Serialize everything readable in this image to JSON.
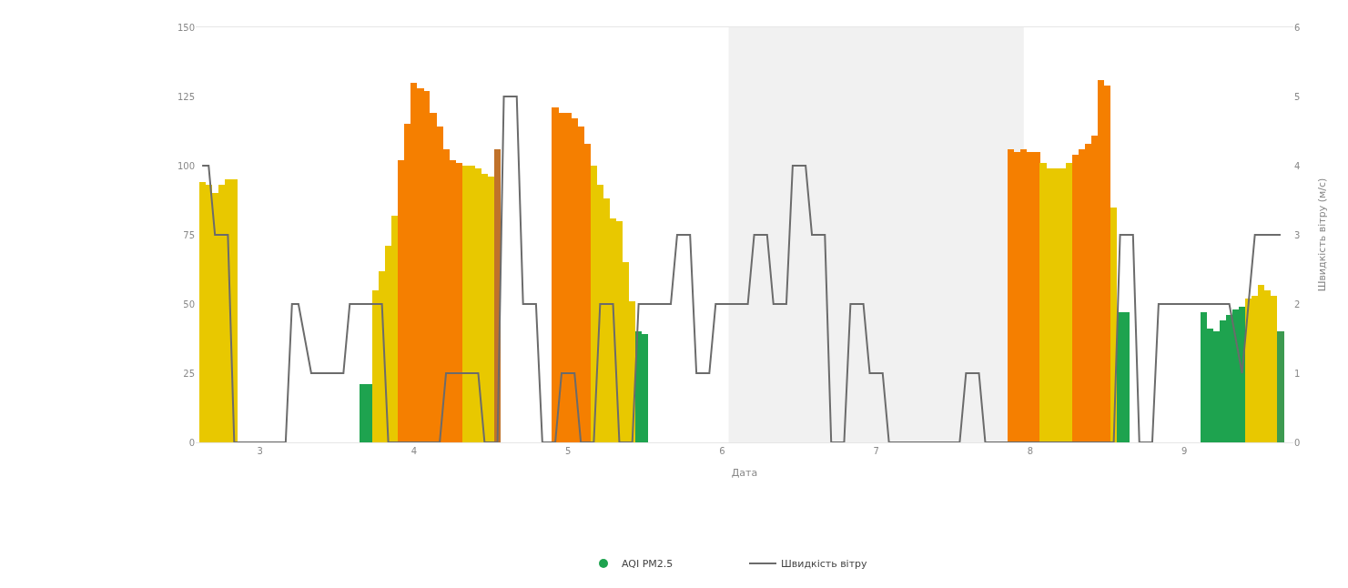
{
  "chart_data": {
    "type": "bar",
    "xlabel": "Дата",
    "y2label": "Швидкість вітру (м/с)",
    "xlim": [
      2.583,
      9.708
    ],
    "xticks": [
      3,
      4,
      5,
      6,
      7,
      8,
      9
    ],
    "ylim": [
      0,
      150
    ],
    "yticks": [
      0,
      25,
      50,
      75,
      100,
      125,
      150
    ],
    "y2lim": [
      0,
      6
    ],
    "y2ticks": [
      0,
      1,
      2,
      3,
      4,
      5,
      6
    ],
    "grid": false,
    "legend": "bottom",
    "marker": "none",
    "line_style": "solid",
    "bands": [
      {
        "axis": "x",
        "from": 6.042,
        "to": 7.958,
        "color": "#f1f1f1"
      }
    ],
    "series": [
      {
        "name": "AQI PM2.5",
        "color": "#1ea34f",
        "x": [
          2.625,
          2.667,
          2.708,
          2.75,
          2.792,
          2.833,
          3.667,
          3.708,
          3.75,
          3.792,
          3.833,
          3.875,
          3.917,
          3.958,
          4,
          4.042,
          4.083,
          4.125,
          4.167,
          4.208,
          4.25,
          4.292,
          4.333,
          4.375,
          4.417,
          4.458,
          4.5,
          4.542,
          4.917,
          4.958,
          5,
          5.042,
          5.083,
          5.125,
          5.167,
          5.208,
          5.25,
          5.292,
          5.333,
          5.375,
          5.417,
          5.458,
          5.5,
          7.875,
          7.917,
          7.958,
          8,
          8.042,
          8.083,
          8.125,
          8.167,
          8.208,
          8.25,
          8.292,
          8.333,
          8.375,
          8.417,
          8.458,
          8.5,
          8.542,
          8.583,
          8.625,
          9.125,
          9.167,
          9.208,
          9.25,
          9.292,
          9.333,
          9.375,
          9.417,
          9.458,
          9.5,
          9.542,
          9.583,
          9.625
        ],
        "values": [
          94,
          93,
          90,
          93,
          95,
          95,
          21,
          21,
          55,
          62,
          71,
          82,
          102,
          115,
          130,
          128,
          127,
          119,
          114,
          106,
          102,
          101,
          100,
          100,
          99,
          97,
          96,
          106,
          121,
          119,
          119,
          117,
          114,
          108,
          100,
          93,
          88,
          81,
          80,
          65,
          51,
          40,
          39,
          106,
          105,
          106,
          105,
          105,
          101,
          99,
          99,
          99,
          101,
          104,
          106,
          108,
          111,
          131,
          129,
          85,
          47,
          47,
          47,
          41,
          40,
          44,
          46,
          48,
          49,
          52,
          53,
          57,
          55,
          53,
          40
        ],
        "colors": [
          "#e8c800",
          "#e8c800",
          "#e8c800",
          "#e8c800",
          "#e8c800",
          "#e8c800",
          "#1ea34f",
          "#1ea34f",
          "#e8c800",
          "#e8c800",
          "#e8c800",
          "#e8c800",
          "#f57f00",
          "#f57f00",
          "#f57f00",
          "#f57f00",
          "#f57f00",
          "#f57f00",
          "#f57f00",
          "#f57f00",
          "#f57f00",
          "#f57f00",
          "#e8c800",
          "#e8c800",
          "#e8c800",
          "#e8c800",
          "#e8c800",
          "#c0722a",
          "#f57f00",
          "#f57f00",
          "#f57f00",
          "#f57f00",
          "#f57f00",
          "#f57f00",
          "#e8c800",
          "#e8c800",
          "#e8c800",
          "#e8c800",
          "#e8c800",
          "#e8c800",
          "#e8c800",
          "#1ea34f",
          "#1ea34f",
          "#f57f00",
          "#f57f00",
          "#f57f00",
          "#f57f00",
          "#f57f00",
          "#e8c800",
          "#e8c800",
          "#e8c800",
          "#e8c800",
          "#e8c800",
          "#f57f00",
          "#f57f00",
          "#f57f00",
          "#f57f00",
          "#f57f00",
          "#f57f00",
          "#e8c800",
          "#1ea34f",
          "#1ea34f",
          "#1ea34f",
          "#1ea34f",
          "#1ea34f",
          "#1ea34f",
          "#1ea34f",
          "#1ea34f",
          "#1ea34f",
          "#e8c800",
          "#e8c800",
          "#e8c800",
          "#e8c800",
          "#e8c800",
          "#3c9a50"
        ]
      },
      {
        "type": "line",
        "name": "Швидкість вітру",
        "color": "#6b6b6b",
        "axis": "y2",
        "x": [
          2.625,
          2.667,
          2.708,
          2.792,
          2.833,
          3.167,
          3.208,
          3.25,
          3.333,
          3.542,
          3.583,
          3.792,
          3.833,
          4.167,
          4.208,
          4.417,
          4.458,
          4.542,
          4.583,
          4.667,
          4.708,
          4.792,
          4.833,
          4.917,
          4.958,
          5.042,
          5.083,
          5.167,
          5.208,
          5.292,
          5.333,
          5.417,
          5.458,
          5.667,
          5.708,
          5.792,
          5.833,
          5.917,
          5.958,
          6.167,
          6.208,
          6.292,
          6.333,
          6.417,
          6.458,
          6.542,
          6.583,
          6.667,
          6.708,
          6.792,
          6.833,
          6.917,
          6.958,
          7.042,
          7.083,
          7.542,
          7.583,
          7.667,
          7.708,
          8.542,
          8.583,
          8.667,
          8.708,
          8.792,
          8.833,
          9.292,
          9.375,
          9.458,
          9.625
        ],
        "values": [
          4,
          4,
          3,
          3,
          0,
          0,
          2,
          2,
          1,
          1,
          2,
          2,
          0,
          0,
          1,
          1,
          0,
          0,
          5,
          5,
          2,
          2,
          0,
          0,
          1,
          1,
          0,
          0,
          2,
          2,
          0,
          0,
          2,
          2,
          3,
          3,
          1,
          1,
          2,
          2,
          3,
          3,
          2,
          2,
          4,
          4,
          3,
          3,
          0,
          0,
          2,
          2,
          1,
          1,
          0,
          0,
          1,
          1,
          0,
          0,
          3,
          3,
          0,
          0,
          2,
          2,
          1,
          3,
          3
        ]
      }
    ]
  }
}
